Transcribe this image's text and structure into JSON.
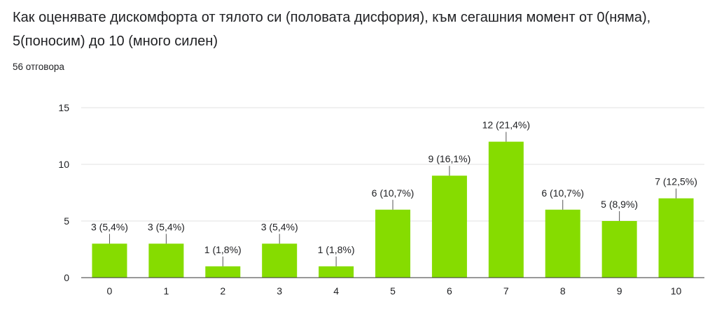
{
  "question": {
    "title": "Как оценявате дискомфорта от тялото си (половата дисфория), към сегашния момент от 0(няма), 5(поносим) до 10 (много силен)",
    "response_count": "56 отговора"
  },
  "colors": {
    "bar": "#86dc00",
    "grid": "#e0e0e0",
    "axis": "#333333",
    "text": "#202124"
  },
  "chart_data": {
    "type": "bar",
    "categories": [
      "0",
      "1",
      "2",
      "3",
      "4",
      "5",
      "6",
      "7",
      "8",
      "9",
      "10"
    ],
    "values": [
      3,
      3,
      1,
      3,
      1,
      6,
      9,
      12,
      6,
      5,
      7
    ],
    "data_labels": [
      "3 (5,4%)",
      "3 (5,4%)",
      "1 (1,8%)",
      "3 (5,4%)",
      "1 (1,8%)",
      "6 (10,7%)",
      "9 (16,1%)",
      "12 (21,4%)",
      "6 (10,7%)",
      "5 (8,9%)",
      "7 (12,5%)"
    ],
    "yticks": [
      0,
      5,
      10,
      15
    ],
    "ylim": [
      0,
      15
    ],
    "grid": true
  }
}
